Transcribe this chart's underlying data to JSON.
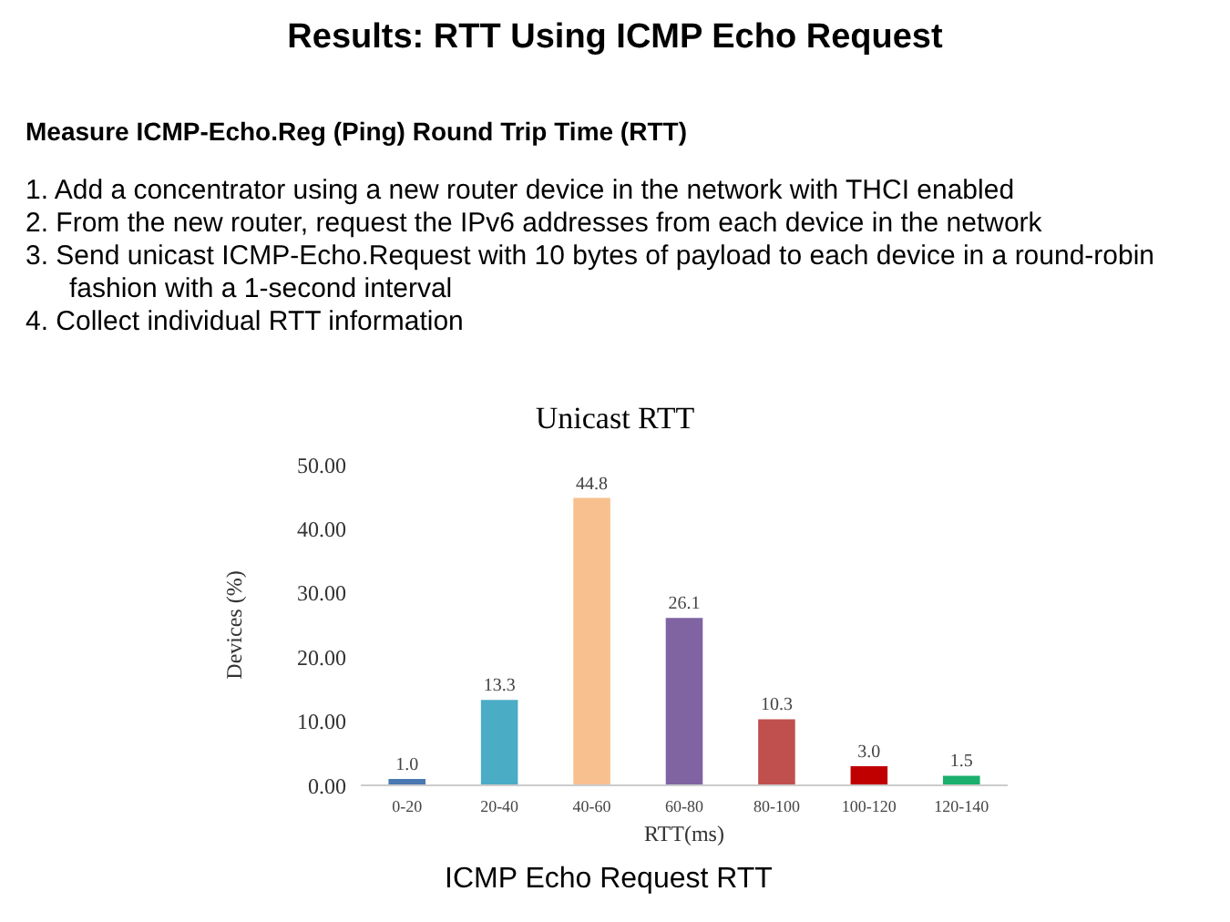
{
  "chart_data": {
    "type": "bar",
    "title": "Unicast RTT",
    "subtitle": "Measure ICMP-Echo.Reg (Ping) Round Trip Time (RTT)",
    "annotations": [
      "Results: RTT Using ICMP Echo Request",
      "1. Add a concentrator using a new router device in the network with THCI enabled",
      "2. From the new router, request the IPv6 addresses from each device in the network",
      "3. Send unicast ICMP-Echo.Request with 10 bytes of payload to each device in a round-robin fashion with a 1-second interval",
      "4. Collect individual  RTT information",
      "ICMP Echo Request RTT"
    ],
    "xlabel": "RTT(ms)",
    "ylabel": "Devices (%)",
    "categories": [
      "0-20",
      "20-40",
      "40-60",
      "60-80",
      "80-100",
      "100-120",
      "120-140"
    ],
    "values": [
      1.0,
      13.3,
      44.8,
      26.1,
      10.3,
      3.0,
      1.5
    ],
    "value_labels": [
      "1.0",
      "13.3",
      "44.8",
      "26.1",
      "10.3",
      "3.0",
      "1.5"
    ],
    "colors": [
      "#4a78b0",
      "#4bacc6",
      "#f9c08f",
      "#8064a2",
      "#c0504d",
      "#c00000",
      "#1aaf6c"
    ],
    "ylim": [
      0,
      50
    ],
    "yticks": [
      {
        "value": 0,
        "label": "0.00"
      },
      {
        "value": 10,
        "label": "10.00"
      },
      {
        "value": 20,
        "label": "20.00"
      },
      {
        "value": 30,
        "label": "30.00"
      },
      {
        "value": 40,
        "label": "40.00"
      },
      {
        "value": 50,
        "label": "50.00"
      }
    ],
    "grid": false
  }
}
